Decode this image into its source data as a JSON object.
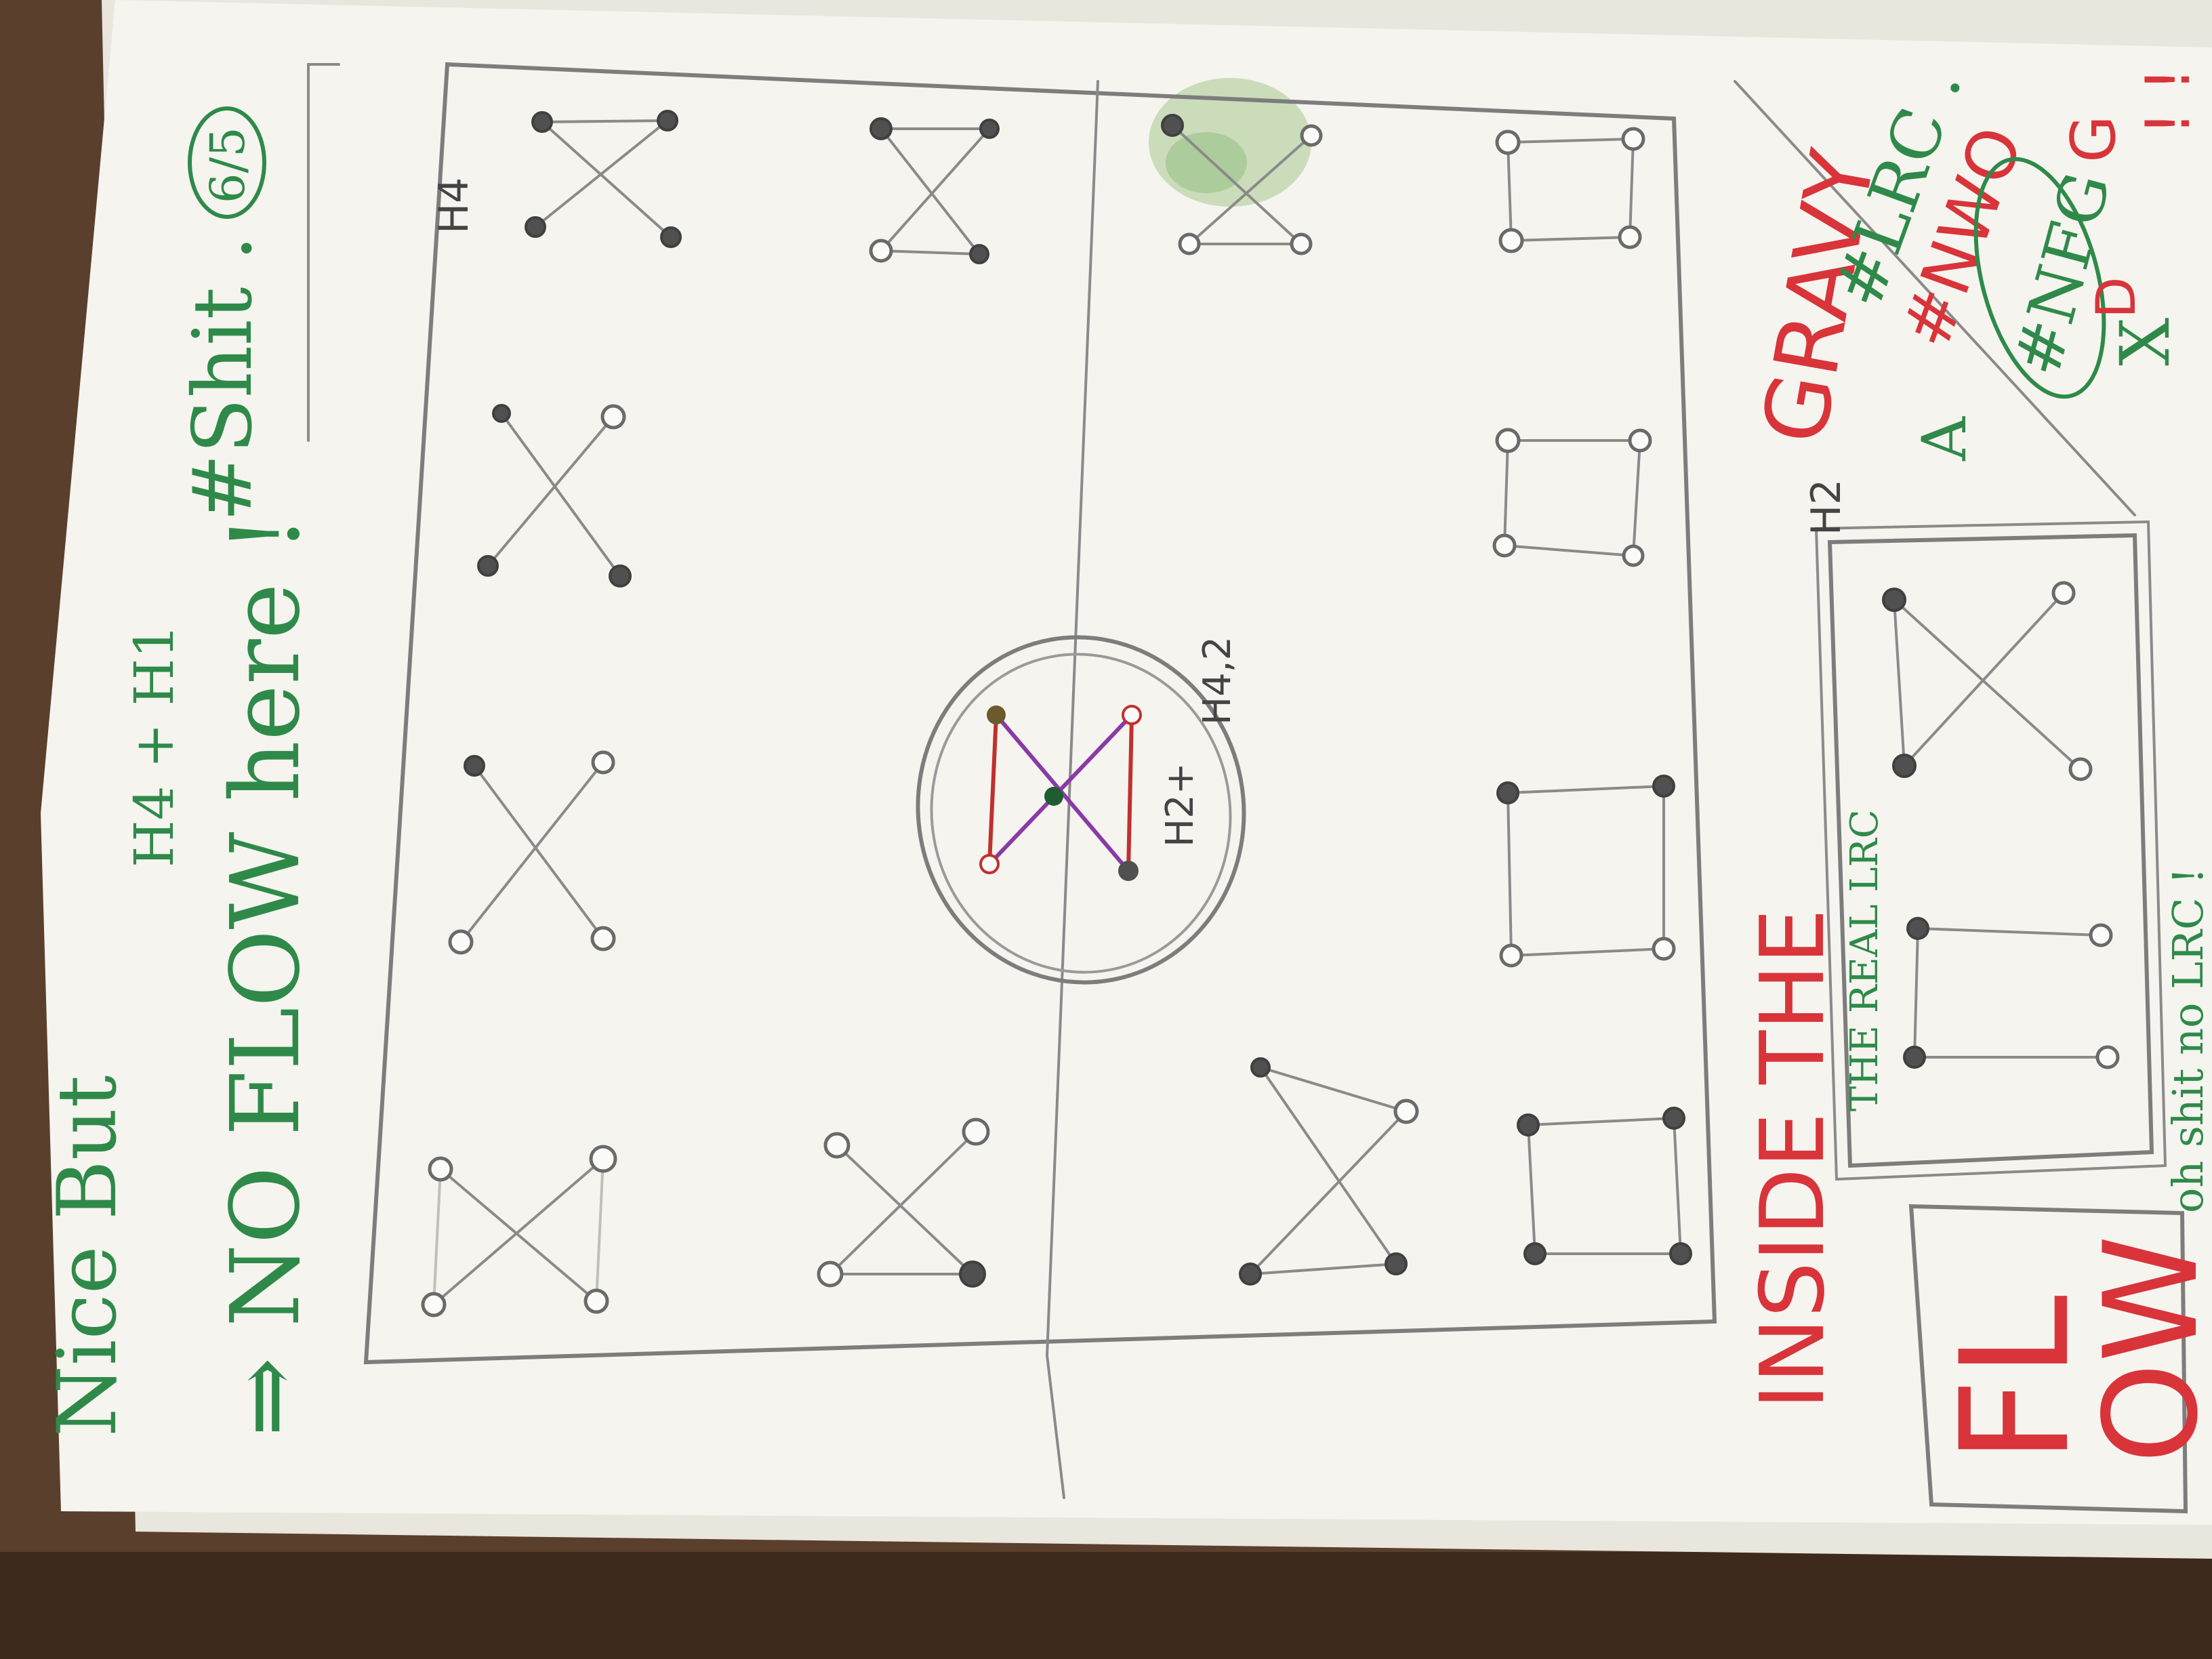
{
  "paper": {
    "colors": {
      "paper": "#f5f4ef",
      "wood": "#5a3f2c",
      "green_ink": "#2f8a4a",
      "red_ink": "#d8343a",
      "pencil": "#7d7d7d",
      "purple_ink": "#8a3aa8",
      "stain": "#a7c98f"
    }
  },
  "left_notes": {
    "nice_but": "Nice But",
    "no_flow": "⇒ NO FLOW here !",
    "h_label": "H4 + H1",
    "hashtag": "#Shit .",
    "score": "6/5"
  },
  "grid": {
    "h4_label": "H4",
    "h2_label": "H2",
    "center_label_a": "H2+",
    "center_label_b": "H4,2"
  },
  "right_notes": {
    "inside": "INSIDE THE",
    "gravy": "GRAVY",
    "the_real_lrc": "THE REAL LRC",
    "no_lrc": "oh shit no LRC !",
    "flow_top": "FL",
    "flow_bottom": "OW",
    "tag_lrc": "#LRC .",
    "tag_nwo": "#NWO",
    "tag_nfg": "#NFG",
    "tag_a": "A",
    "tag_g": "G",
    "tag_d": "D",
    "tag_x": "X",
    "marks": "! !"
  }
}
